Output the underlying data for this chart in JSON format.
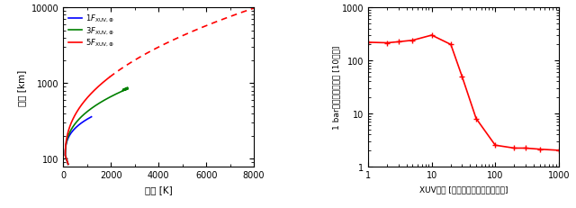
{
  "left_panel": {
    "xlabel": "温度 [K]",
    "ylabel": "高度 [km]",
    "xlim": [
      0,
      8000
    ],
    "ylim": [
      80,
      10000
    ],
    "curve1_color": "blue",
    "curve2_color": "green",
    "curve3_color": "red"
  },
  "right_panel": {
    "xlabel": "XUV強度 [現在地球の強度で規格化]",
    "ylabel": "1 bar大気の散逸時間 [10億年]",
    "line_color": "red",
    "xuv_x": [
      1,
      2,
      3,
      5,
      10,
      20,
      30,
      50,
      100,
      200,
      300,
      500,
      1000
    ],
    "xuv_y": [
      220,
      215,
      225,
      240,
      300,
      200,
      50,
      8,
      2.5,
      2.2,
      2.2,
      2.1,
      2.0
    ]
  }
}
